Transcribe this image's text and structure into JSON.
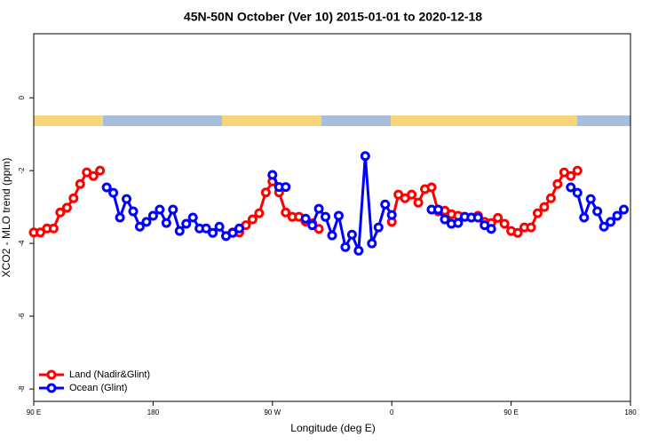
{
  "chart_data": {
    "type": "line",
    "title": "45N-50N October (Ver 10)   2015-01-01 to 2020-12-18",
    "x_label": "Longitude (deg E)",
    "y_label": "XCO2 - MLO trend (ppm)",
    "x": [
      90,
      95,
      100,
      105,
      110,
      115,
      120,
      125,
      130,
      135,
      140,
      145,
      150,
      155,
      160,
      165,
      170,
      175,
      180,
      185,
      190,
      195,
      200,
      205,
      210,
      215,
      220,
      225,
      230,
      235,
      240,
      245,
      250,
      255,
      260,
      265,
      270,
      275,
      280,
      285,
      290,
      295,
      300,
      305,
      310,
      315,
      320,
      325,
      330,
      335,
      340,
      345,
      350,
      355,
      360,
      365,
      370,
      375,
      380,
      385,
      390,
      395,
      400,
      405,
      410,
      415,
      420,
      425,
      430,
      435,
      440,
      445,
      450,
      455,
      460,
      465,
      470,
      475,
      480,
      485,
      490,
      495,
      500,
      505,
      510,
      515,
      520,
      525,
      530,
      535,
      540
    ],
    "series": [
      {
        "name": "Land (Nadir&Glint)",
        "color": "#ff0000",
        "values": [
          -3.7,
          -3.7,
          -3.59,
          -3.59,
          -3.15,
          -3.02,
          -2.76,
          -2.37,
          -2.05,
          -2.15,
          -2.0,
          null,
          null,
          null,
          null,
          null,
          null,
          null,
          null,
          null,
          null,
          null,
          null,
          null,
          null,
          null,
          null,
          null,
          null,
          null,
          -3.7,
          -3.7,
          -3.5,
          -3.34,
          -3.17,
          -2.6,
          -2.3,
          -2.6,
          -3.15,
          -3.27,
          -3.27,
          -3.4,
          -3.45,
          -3.6,
          null,
          null,
          null,
          null,
          null,
          null,
          null,
          null,
          null,
          null,
          -3.41,
          -2.66,
          -2.76,
          -2.66,
          -2.88,
          -2.51,
          -2.46,
          -3.12,
          -3.1,
          -3.2,
          -3.24,
          -3.27,
          -3.29,
          -3.24,
          -3.41,
          -3.44,
          -3.3,
          -3.46,
          -3.66,
          -3.71,
          -3.56,
          -3.56,
          -3.17,
          -3.0,
          -2.76,
          -2.37,
          -2.05,
          -2.15,
          -2.0,
          null,
          null,
          null,
          null,
          null,
          null,
          null,
          null
        ]
      },
      {
        "name": "Ocean (Glint)",
        "color": "#0000ff",
        "values": [
          null,
          null,
          null,
          null,
          null,
          null,
          null,
          null,
          null,
          null,
          null,
          -2.46,
          -2.61,
          -3.29,
          -2.78,
          -3.12,
          -3.54,
          -3.41,
          -3.24,
          -3.07,
          -3.44,
          -3.07,
          -3.66,
          -3.46,
          -3.29,
          -3.59,
          -3.59,
          -3.71,
          -3.54,
          -3.8,
          -3.71,
          -3.59,
          null,
          null,
          null,
          null,
          -2.12,
          -2.45,
          -2.45,
          null,
          null,
          -3.32,
          -3.5,
          -3.05,
          -3.27,
          -3.78,
          -3.24,
          -4.1,
          -3.76,
          -4.2,
          -1.6,
          -4.0,
          -3.56,
          -2.93,
          -3.22,
          null,
          null,
          null,
          null,
          null,
          -3.07,
          -3.07,
          -3.34,
          -3.46,
          -3.44,
          -3.27,
          -3.29,
          -3.29,
          -3.5,
          -3.6,
          null,
          null,
          null,
          null,
          null,
          null,
          null,
          null,
          null,
          null,
          null,
          -2.46,
          -2.61,
          -3.29,
          -2.78,
          -3.12,
          -3.54,
          -3.41,
          -3.24,
          -3.07,
          null
        ]
      }
    ],
    "xlim": [
      90,
      540
    ],
    "xticks": [
      {
        "value": 90,
        "label": "90 E"
      },
      {
        "value": 180,
        "label": "180"
      },
      {
        "value": 270,
        "label": "90 W"
      },
      {
        "value": 360,
        "label": "0"
      },
      {
        "value": 450,
        "label": "90 E"
      },
      {
        "value": 540,
        "label": "180"
      }
    ],
    "ylim": [
      -8.34,
      1.76
    ],
    "yticks": [
      -8,
      -6,
      -4,
      -2,
      0
    ],
    "legend": "bottom-left"
  }
}
